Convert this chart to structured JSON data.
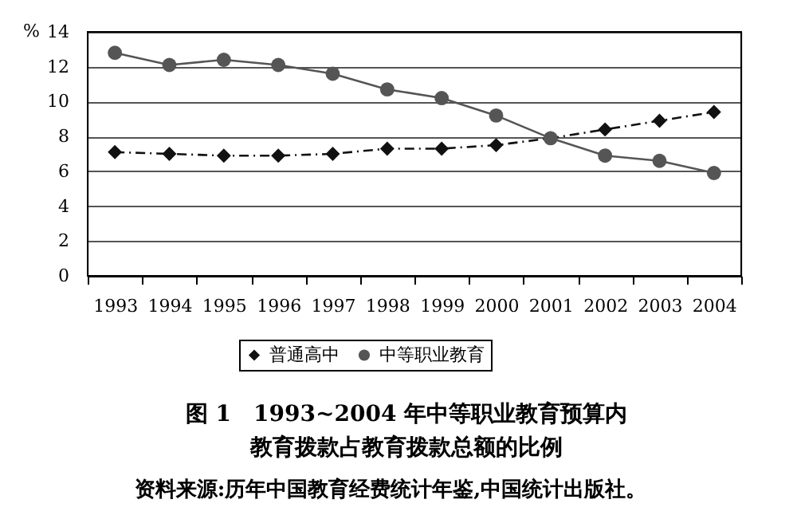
{
  "chart_data": {
    "type": "line",
    "title": "图 1　1993~2004 年中等职业教育预算内教育拨款占教育拨款总额的比例",
    "ylabel": "%",
    "categories": [
      "1993",
      "1994",
      "1995",
      "1996",
      "1997",
      "1998",
      "1999",
      "2000",
      "2001",
      "2002",
      "2003",
      "2004"
    ],
    "series": [
      {
        "name": "普通高中",
        "color": "#111111",
        "marker": "diamond",
        "line_style": "dashdot",
        "values": [
          7.1,
          7.0,
          6.9,
          6.9,
          7.0,
          7.3,
          7.3,
          7.5,
          7.9,
          8.4,
          8.9,
          9.4
        ]
      },
      {
        "name": "中等职业教育",
        "color": "#555555",
        "marker": "circle",
        "line_style": "solid",
        "values": [
          12.8,
          12.1,
          12.4,
          12.1,
          11.6,
          10.7,
          10.2,
          9.2,
          7.9,
          6.9,
          6.6,
          5.9
        ]
      }
    ],
    "ylim": [
      0,
      14
    ],
    "yticks": [
      0,
      2,
      4,
      6,
      8,
      10,
      12,
      14
    ],
    "grid": "y",
    "legend": "bottom",
    "annotations": [
      "资料来源:历年中国教育经费统计年鉴,中国统计出版社。"
    ]
  }
}
